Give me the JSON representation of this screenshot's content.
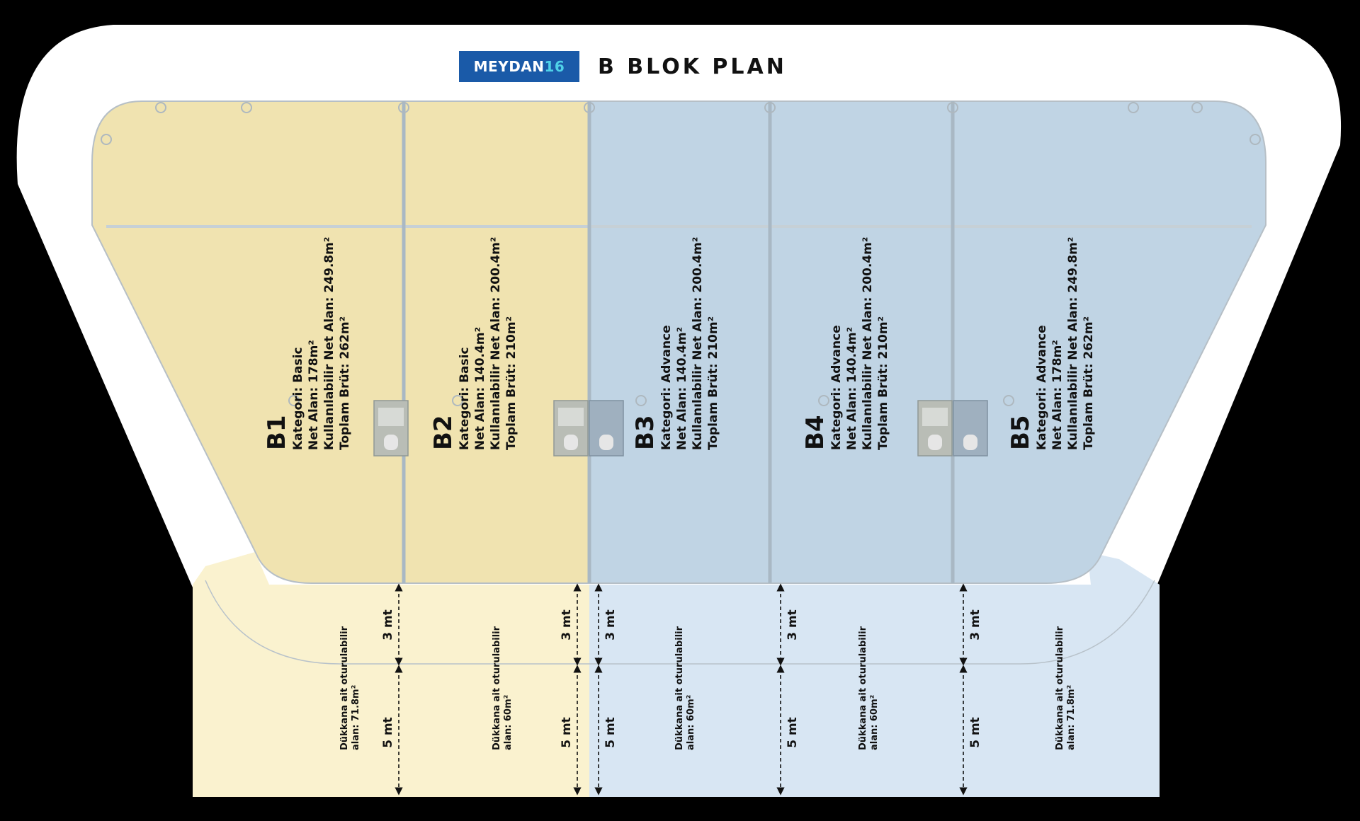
{
  "header": {
    "logo_prefix": "MEYDAN",
    "logo_number": "16",
    "title": "B BLOK PLAN"
  },
  "colors": {
    "basic": "#f0e3b0",
    "advance": "#c0d4e4",
    "terrace_basic": "#faf2cf",
    "terrace_advance": "#d8e6f3",
    "wall": "#a9b8c4",
    "outline": "#ffffff",
    "background": "#000000"
  },
  "units": [
    {
      "id": "B1",
      "lines": [
        "Kategori: Basic",
        "Net Alan: 178m²",
        "Kullanılabilir Net Alan: 249.8m²",
        "Toplam Brüt: 262m²"
      ]
    },
    {
      "id": "B2",
      "lines": [
        "Kategori: Basic",
        "Net Alan: 140.4m²",
        "Kullanılabilir Net Alan: 200.4m²",
        "Toplam Brüt: 210m²"
      ]
    },
    {
      "id": "B3",
      "lines": [
        "Kategori: Advance",
        "Net Alan: 140.4m²",
        "Kullanılabilir Net Alan: 200.4m²",
        "Toplam Brüt: 210m²"
      ]
    },
    {
      "id": "B4",
      "lines": [
        "Kategori: Advance",
        "Net Alan: 140.4m²",
        "Kullanılabilir Net Alan: 200.4m²",
        "Toplam Brüt: 210m²"
      ]
    },
    {
      "id": "B5",
      "lines": [
        "Kategori: Advance",
        "Net Alan: 178m²",
        "Kullanılabilir Net Alan: 249.8m²",
        "Toplam Brüt: 262m²"
      ]
    }
  ],
  "terraces": [
    {
      "line1": "Dükkana ait oturulabilir",
      "line2": "alan: 71.8m²"
    },
    {
      "line1": "Dükkana ait oturulabilir",
      "line2": "alan: 60m²"
    },
    {
      "line1": "Dükkana ait oturulabilir",
      "line2": "alan: 60m²"
    },
    {
      "line1": "Dükkana ait oturulabilir",
      "line2": "alan: 60m²"
    },
    {
      "line1": "Dükkana ait oturulabilir",
      "line2": "alan: 71.8m²"
    }
  ],
  "dimensions": {
    "near": "3 mt",
    "far": "5 mt"
  }
}
